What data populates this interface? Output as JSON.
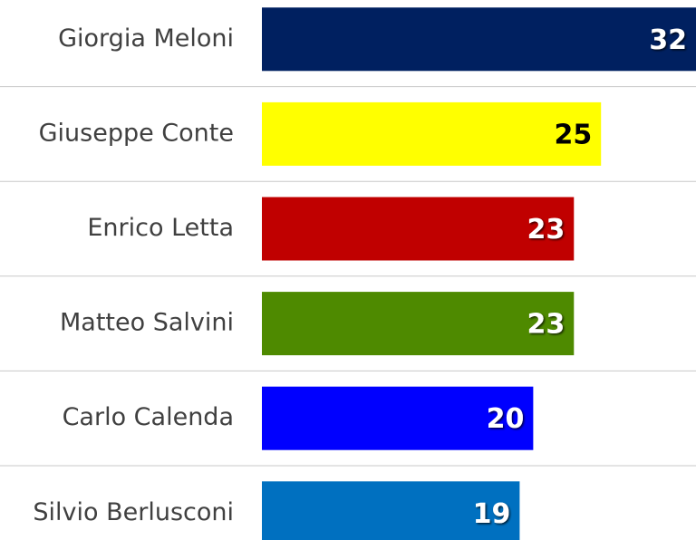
{
  "chart_data": {
    "type": "bar",
    "orientation": "horizontal",
    "categories": [
      "Giorgia Meloni",
      "Giuseppe Conte",
      "Enrico Letta",
      "Matteo Salvini",
      "Carlo Calenda",
      "Silvio Berlusconi"
    ],
    "values": [
      32,
      25,
      23,
      23,
      20,
      19
    ],
    "colors": [
      "#002060",
      "#ffff00",
      "#c00000",
      "#4e8a00",
      "#0000ff",
      "#0070c0"
    ],
    "label_colors": [
      "#ffffff",
      "#000000",
      "#ffffff",
      "#ffffff",
      "#ffffff",
      "#ffffff"
    ],
    "xlim": [
      0,
      32
    ]
  }
}
